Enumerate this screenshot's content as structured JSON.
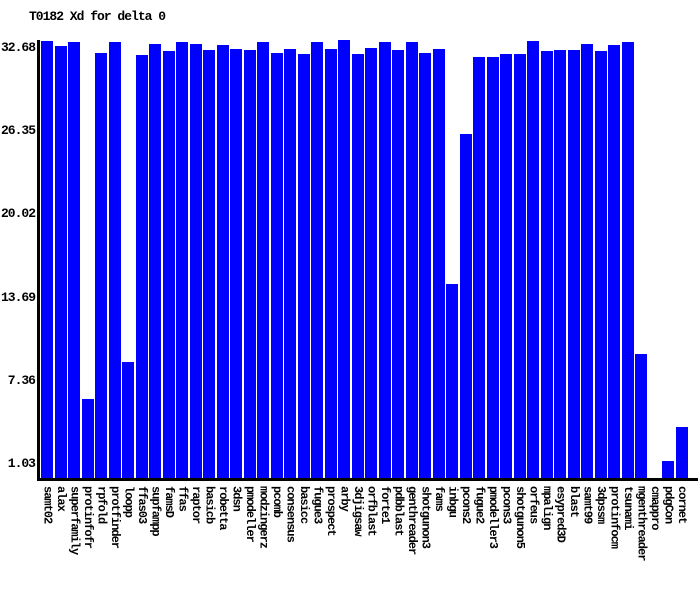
{
  "title": "T0182 Xd for delta 0",
  "colors": {
    "bar": "#0000ff",
    "axis": "#000000",
    "text": "#000000",
    "background": "#ffffff"
  },
  "chart_data": {
    "type": "bar",
    "title": "T0182 Xd for delta 0",
    "xlabel": "",
    "ylabel": "",
    "grid": false,
    "legend": null,
    "bar_color": "#0000ff",
    "ylim": [
      0,
      33.3
    ],
    "yticks": [
      32.68,
      26.35,
      20.02,
      13.69,
      7.36,
      1.03
    ],
    "categories": [
      "samt02",
      "alax",
      "superfamily",
      "protinfofr",
      "rpfold",
      "protfinder",
      "loopp",
      "ffas03",
      "supfampp",
      "famsD",
      "ffas",
      "raptor",
      "basicb",
      "robetta",
      "3dsn",
      "pmodeller",
      "modzingerz",
      "pcomb",
      "consensus",
      "basicc",
      "fugue3",
      "prospect",
      "arby",
      "3djigsaw",
      "orfblast",
      "forte1",
      "pdbblast",
      "genthreader",
      "shotgunon3",
      "fams",
      "inbgu",
      "pcons2",
      "fugue2",
      "pmodeller3",
      "pcons3",
      "shotgunon5",
      "orfeus",
      "mpalign",
      "esypred3D",
      "blast",
      "samt99",
      "3dpssm",
      "protinfocm",
      "tsunami",
      "mgenthreader",
      "cmappro",
      "pdgCon",
      "cornet"
    ],
    "values": [
      33.2,
      32.8,
      33.1,
      6.0,
      32.3,
      33.1,
      8.8,
      32.1,
      33.0,
      32.4,
      33.1,
      33.0,
      32.5,
      32.9,
      32.6,
      32.5,
      33.1,
      32.3,
      32.6,
      32.2,
      33.1,
      32.6,
      33.3,
      32.2,
      32.7,
      33.1,
      32.5,
      33.1,
      32.3,
      32.6,
      14.7,
      26.1,
      32.0,
      32.0,
      32.2,
      32.2,
      33.2,
      32.4,
      32.5,
      32.5,
      33.0,
      32.4,
      32.9,
      33.1,
      9.4,
      0,
      1.3,
      3.9
    ]
  }
}
